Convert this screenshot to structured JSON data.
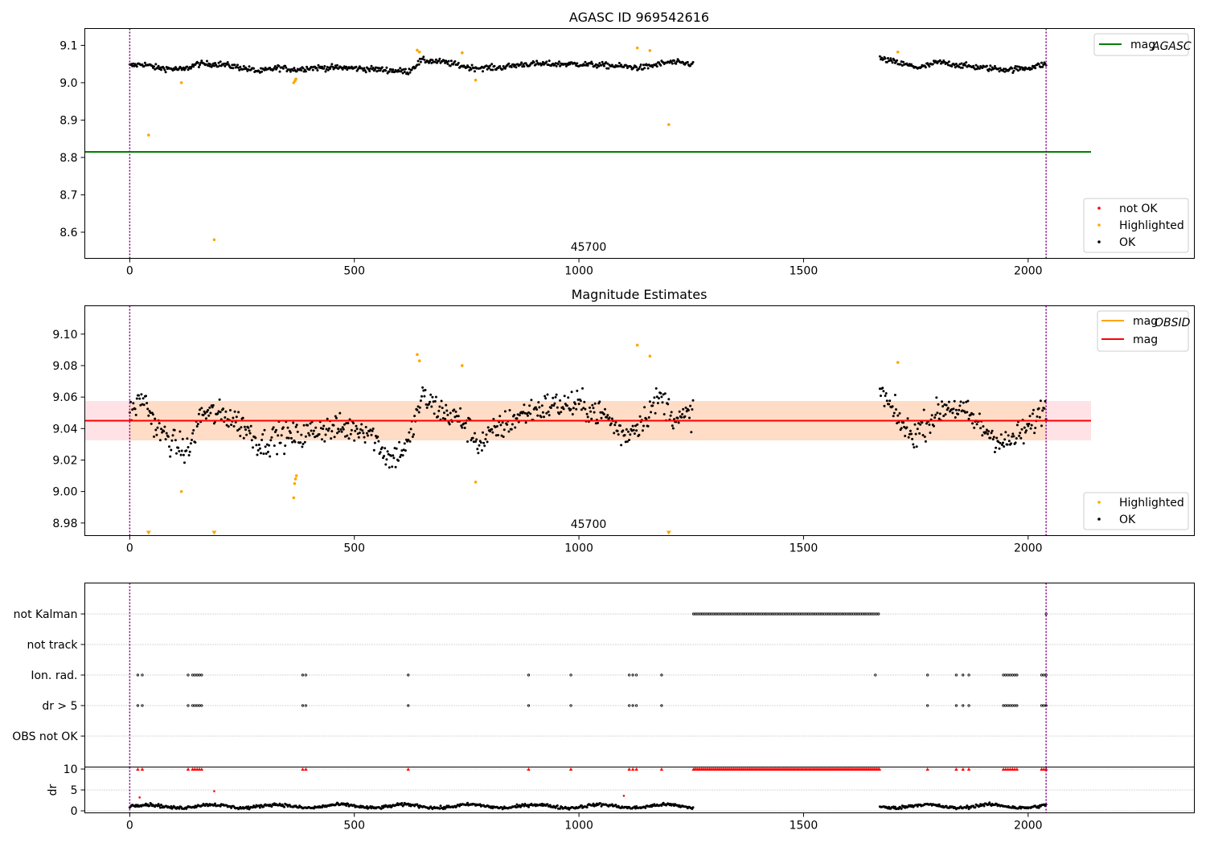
{
  "figure": {
    "title_top": "AGASC ID 969542616",
    "title_middle": "Magnitude Estimates",
    "obsid_label": "45700"
  },
  "colors": {
    "agasc_line": "#008000",
    "highlighted": "#ffa500",
    "not_ok": "#ff0000",
    "ok": "#000000",
    "mag_line": "#ff0000",
    "mag_obsid_line": "#ffa500",
    "band_fill": "#ffb6c1",
    "band_fill_inner": "#ffdab9",
    "obs_boundary": "#800080"
  },
  "chart_data": [
    {
      "type": "scatter",
      "title": "AGASC ID 969542616",
      "xlim": [
        -100,
        2370
      ],
      "ylim": [
        8.53,
        9.145
      ],
      "xticks": [
        0,
        500,
        1000,
        1500,
        2000
      ],
      "yticks": [
        8.6,
        8.7,
        8.8,
        8.9,
        9.0,
        9.1
      ],
      "ytick_labels": [
        "8.6",
        "8.7",
        "8.8",
        "8.9",
        "9.0",
        "9.1"
      ],
      "grid": false,
      "obs_boundaries": [
        0,
        2040
      ],
      "obs_label": {
        "text": "45700",
        "x": 1020
      },
      "mag_agasc": {
        "value": 8.815,
        "x_range": [
          -100,
          2140
        ]
      },
      "legend_upper": {
        "position": "upper right",
        "entries": [
          {
            "label": "mag",
            "subscript": "AGASC",
            "kind": "line",
            "color_key": "agasc_line"
          }
        ]
      },
      "legend_lower": {
        "position": "lower right",
        "entries": [
          {
            "label": "not OK",
            "kind": "dot",
            "color_key": "not_ok"
          },
          {
            "label": "Highlighted",
            "kind": "dot",
            "color_key": "highlighted"
          },
          {
            "label": "OK",
            "kind": "dot",
            "color_key": "ok"
          }
        ]
      },
      "ok_segments": [
        {
          "x_start": 0,
          "x_end": 1255,
          "levels": [
            [
              0,
              9.045
            ],
            [
              30,
              9.05
            ],
            [
              60,
              9.04
            ],
            [
              120,
              9.035
            ],
            [
              150,
              9.05
            ],
            [
              200,
              9.05
            ],
            [
              250,
              9.04
            ],
            [
              290,
              9.03
            ],
            [
              330,
              9.04
            ],
            [
              370,
              9.035
            ],
            [
              400,
              9.04
            ],
            [
              480,
              9.04
            ],
            [
              560,
              9.035
            ],
            [
              620,
              9.03
            ],
            [
              650,
              9.06
            ],
            [
              700,
              9.055
            ],
            [
              760,
              9.04
            ],
            [
              820,
              9.04
            ],
            [
              880,
              9.05
            ],
            [
              950,
              9.05
            ],
            [
              1000,
              9.05
            ],
            [
              1080,
              9.045
            ],
            [
              1140,
              9.04
            ],
            [
              1200,
              9.055
            ],
            [
              1255,
              9.05
            ]
          ]
        },
        {
          "x_start": 1670,
          "x_end": 2040,
          "levels": [
            [
              1670,
              9.065
            ],
            [
              1720,
              9.05
            ],
            [
              1760,
              9.04
            ],
            [
              1800,
              9.055
            ],
            [
              1860,
              9.045
            ],
            [
              1900,
              9.04
            ],
            [
              1960,
              9.035
            ],
            [
              2000,
              9.04
            ],
            [
              2040,
              9.05
            ]
          ]
        }
      ],
      "ok_noise": 0.007,
      "highlighted_points": [
        [
          42,
          8.86
        ],
        [
          115,
          9.0
        ],
        [
          188,
          8.58
        ],
        [
          365,
          9.0
        ],
        [
          368,
          9.005
        ],
        [
          370,
          9.01
        ],
        [
          640,
          9.087
        ],
        [
          645,
          9.082
        ],
        [
          740,
          9.08
        ],
        [
          770,
          9.007
        ],
        [
          1130,
          9.093
        ],
        [
          1158,
          9.086
        ],
        [
          1200,
          8.888
        ],
        [
          1710,
          9.082
        ]
      ]
    },
    {
      "type": "scatter",
      "title": "Magnitude Estimates",
      "xlim": [
        -100,
        2370
      ],
      "ylim": [
        8.972,
        9.118
      ],
      "xticks": [
        0,
        500,
        1000,
        1500,
        2000
      ],
      "yticks": [
        8.98,
        9.0,
        9.02,
        9.04,
        9.06,
        9.08,
        9.1
      ],
      "ytick_labels": [
        "8.98",
        "9.00",
        "9.02",
        "9.04",
        "9.06",
        "9.08",
        "9.10"
      ],
      "grid": false,
      "obs_boundaries": [
        0,
        2040
      ],
      "obs_label": {
        "text": "45700",
        "x": 1020
      },
      "mag_value": 9.045,
      "mag_band": [
        9.0325,
        9.0575
      ],
      "band_x_range": [
        -100,
        2140
      ],
      "obsid_band_x_range": [
        0,
        2040
      ],
      "legend_upper": {
        "position": "upper right",
        "entries": [
          {
            "label": "mag",
            "subscript": "OBSID",
            "kind": "line",
            "color_key": "mag_obsid_line"
          },
          {
            "label": "mag",
            "kind": "line",
            "color_key": "mag_line"
          }
        ]
      },
      "legend_lower": {
        "position": "lower right",
        "entries": [
          {
            "label": "Highlighted",
            "kind": "dot",
            "color_key": "highlighted"
          },
          {
            "label": "OK",
            "kind": "dot",
            "color_key": "ok"
          }
        ]
      },
      "ok_segments": [
        {
          "x_start": 0,
          "x_end": 1255,
          "levels": [
            [
              0,
              9.05
            ],
            [
              30,
              9.06
            ],
            [
              60,
              9.04
            ],
            [
              100,
              9.03
            ],
            [
              130,
              9.025
            ],
            [
              160,
              9.05
            ],
            [
              220,
              9.048
            ],
            [
              260,
              9.04
            ],
            [
              290,
              9.03
            ],
            [
              330,
              9.035
            ],
            [
              380,
              9.035
            ],
            [
              420,
              9.04
            ],
            [
              470,
              9.04
            ],
            [
              530,
              9.04
            ],
            [
              580,
              9.02
            ],
            [
              620,
              9.03
            ],
            [
              650,
              9.06
            ],
            [
              700,
              9.05
            ],
            [
              740,
              9.045
            ],
            [
              780,
              9.03
            ],
            [
              820,
              9.04
            ],
            [
              880,
              9.05
            ],
            [
              940,
              9.055
            ],
            [
              1000,
              9.055
            ],
            [
              1060,
              9.048
            ],
            [
              1100,
              9.035
            ],
            [
              1140,
              9.045
            ],
            [
              1180,
              9.06
            ],
            [
              1220,
              9.045
            ],
            [
              1255,
              9.05
            ]
          ]
        },
        {
          "x_start": 1670,
          "x_end": 2040,
          "levels": [
            [
              1670,
              9.065
            ],
            [
              1700,
              9.05
            ],
            [
              1740,
              9.035
            ],
            [
              1780,
              9.045
            ],
            [
              1820,
              9.055
            ],
            [
              1860,
              9.05
            ],
            [
              1900,
              9.04
            ],
            [
              1950,
              9.03
            ],
            [
              2000,
              9.04
            ],
            [
              2040,
              9.055
            ]
          ]
        }
      ],
      "ok_noise": 0.008,
      "highlighted_points": [
        [
          115,
          9.0
        ],
        [
          365,
          8.996
        ],
        [
          367,
          9.005
        ],
        [
          369,
          9.008
        ],
        [
          371,
          9.01
        ],
        [
          640,
          9.087
        ],
        [
          645,
          9.083
        ],
        [
          740,
          9.08
        ],
        [
          770,
          9.006
        ],
        [
          1130,
          9.093
        ],
        [
          1158,
          9.086
        ],
        [
          1710,
          9.082
        ]
      ],
      "highlighted_clipped_x": [
        42,
        188,
        1200
      ]
    },
    {
      "type": "scatter",
      "xlim": [
        -100,
        2370
      ],
      "flags_panel": {
        "categories": [
          "not Kalman",
          "not track",
          "Ion. rad.",
          "dr > 5",
          "OBS not OK"
        ],
        "not_kalman_range": [
          1255,
          1670
        ],
        "not_kalman_extra": [
          2040
        ],
        "ion_rad_x": [
          18,
          28,
          130,
          140,
          145,
          150,
          155,
          160,
          385,
          392,
          620,
          888,
          982,
          1112,
          1120,
          1128,
          1184,
          1660,
          1776,
          1840,
          1855,
          1868,
          1945,
          1950,
          1955,
          1960,
          1965,
          1970,
          1975,
          2030,
          2035,
          2040
        ],
        "dr5_x": [
          18,
          28,
          130,
          140,
          145,
          150,
          155,
          160,
          385,
          392,
          620,
          888,
          982,
          1112,
          1120,
          1128,
          1184,
          1776,
          1840,
          1855,
          1868,
          1945,
          1950,
          1955,
          1960,
          1965,
          1970,
          1975,
          2030,
          2035,
          2040
        ]
      },
      "dr_panel": {
        "ylabel": "dr",
        "ylim": [
          -0.5,
          10.5
        ],
        "yticks": [
          0,
          5,
          10
        ],
        "capped_x": [
          18,
          28,
          130,
          140,
          145,
          150,
          155,
          160,
          385,
          392,
          620,
          888,
          982,
          1112,
          1120,
          1128,
          1184,
          1776,
          1840,
          1855,
          1868,
          1945,
          1950,
          1955,
          1960,
          1965,
          1970,
          1975,
          2030,
          2035,
          2040
        ],
        "capped_range": [
          1255,
          1670
        ],
        "outliers": [
          [
            22,
            3.2
          ],
          [
            188,
            4.7
          ],
          [
            1100,
            3.6
          ]
        ],
        "ok_segments": [
          [
            0,
            1255
          ],
          [
            1670,
            2040
          ]
        ],
        "ok_base": 1.1,
        "ok_noise": 0.6
      },
      "xticks": [
        0,
        500,
        1000,
        1500,
        2000
      ]
    }
  ]
}
